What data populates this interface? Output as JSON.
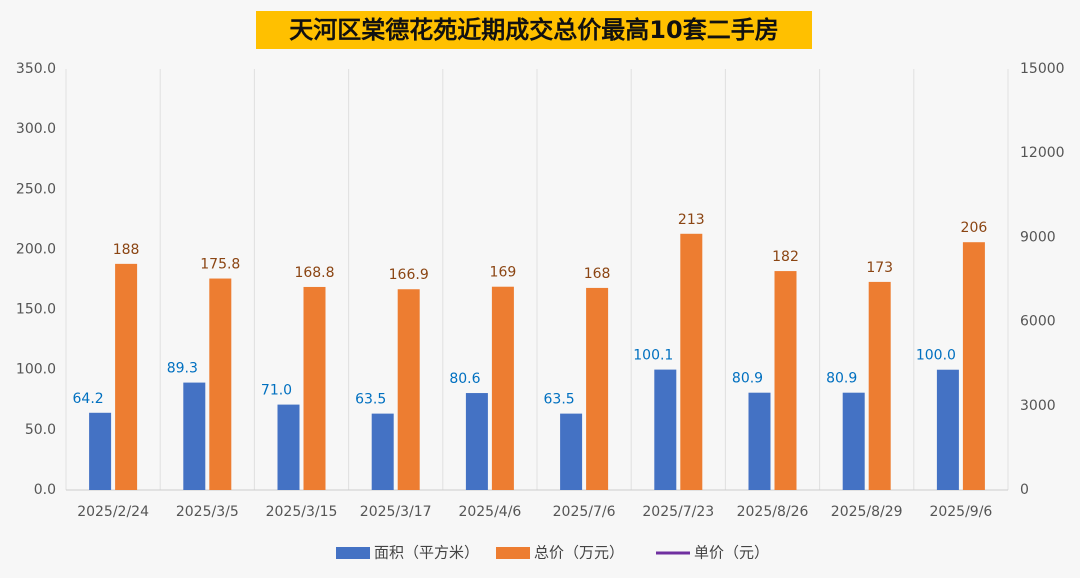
{
  "chart_data": {
    "type": "bar",
    "title": "天河区棠德花苑近期成交总价最高10套二手房",
    "categories": [
      "2025/2/24",
      "2025/3/5",
      "2025/3/15",
      "2025/3/17",
      "2025/4/6",
      "2025/7/6",
      "2025/7/23",
      "2025/8/26",
      "2025/8/29",
      "2025/9/6"
    ],
    "series": [
      {
        "name": "面积（平方米）",
        "color": "#4472c4",
        "label_color": "#0070c0",
        "values": [
          64.2,
          89.3,
          71.0,
          63.5,
          80.6,
          63.5,
          100.1,
          80.9,
          80.9,
          100.0
        ],
        "value_labels": [
          "64.2",
          "89.3",
          "71.0",
          "63.5",
          "80.6",
          "63.5",
          "100.1",
          "80.9",
          "80.9",
          "100.0"
        ]
      },
      {
        "name": "总价（万元）",
        "color": "#ed7d31",
        "label_color": "#8b4513",
        "values": [
          188,
          175.8,
          168.8,
          166.9,
          169,
          168,
          213,
          182,
          173,
          206
        ]
      },
      {
        "name": "单价（元）",
        "color": "#7030a0",
        "type": "line",
        "axis": "y2",
        "values": [
          null,
          null,
          null,
          null,
          null,
          null,
          null,
          null,
          null,
          null
        ]
      }
    ],
    "ylim": [
      0,
      350
    ],
    "yticks": [
      {
        "value": 0,
        "label": "0.0"
      },
      {
        "value": 50,
        "label": "50.0"
      },
      {
        "value": 100,
        "label": "100.0"
      },
      {
        "value": 150,
        "label": "150.0"
      },
      {
        "value": 200,
        "label": "200.0"
      },
      {
        "value": 250,
        "label": "250.0"
      },
      {
        "value": 300,
        "label": "300.0"
      },
      {
        "value": 350,
        "label": "350.0"
      }
    ],
    "y2lim": [
      0,
      15000
    ],
    "y2ticks": [
      0,
      3000,
      6000,
      9000,
      12000,
      15000
    ],
    "legend": "bottom"
  }
}
